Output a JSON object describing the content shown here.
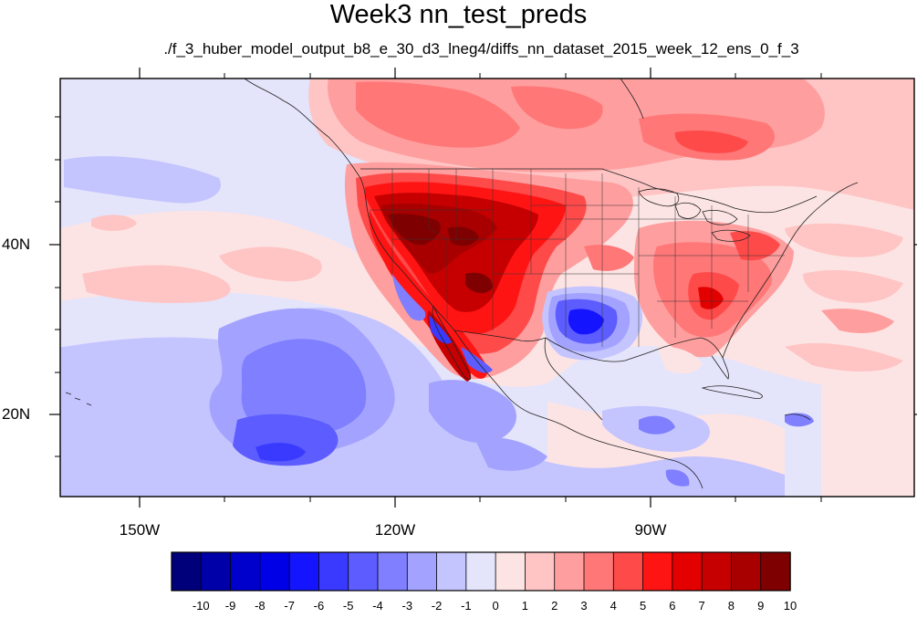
{
  "title": "Week3 nn_test_preds",
  "subtitle": "./f_3_huber_model_output_b8_e_30_d3_lneg4/diffs_nn_dataset_2015_week_12_ens_0_f_3",
  "axes": {
    "lon_labels": [
      "150W",
      "120W",
      "90W"
    ],
    "lat_labels": [
      "40N",
      "20N"
    ]
  },
  "colorbar": {
    "labels": [
      "-10",
      "-9",
      "-8",
      "-7",
      "-6",
      "-5",
      "-4",
      "-3",
      "-2",
      "-1",
      "0",
      "1",
      "2",
      "3",
      "4",
      "5",
      "6",
      "7",
      "8",
      "9",
      "10"
    ],
    "colors": [
      "#00007a",
      "#0000a8",
      "#0000cc",
      "#0000e6",
      "#1414ff",
      "#3a3aff",
      "#5c5cff",
      "#7f7fff",
      "#a3a3ff",
      "#c4c4ff",
      "#e4e4fb",
      "#fde4e4",
      "#ffc4c4",
      "#ff9e9e",
      "#ff7777",
      "#ff4a4a",
      "#ff1414",
      "#e30000",
      "#c60000",
      "#a80000",
      "#7f0000"
    ]
  }
}
